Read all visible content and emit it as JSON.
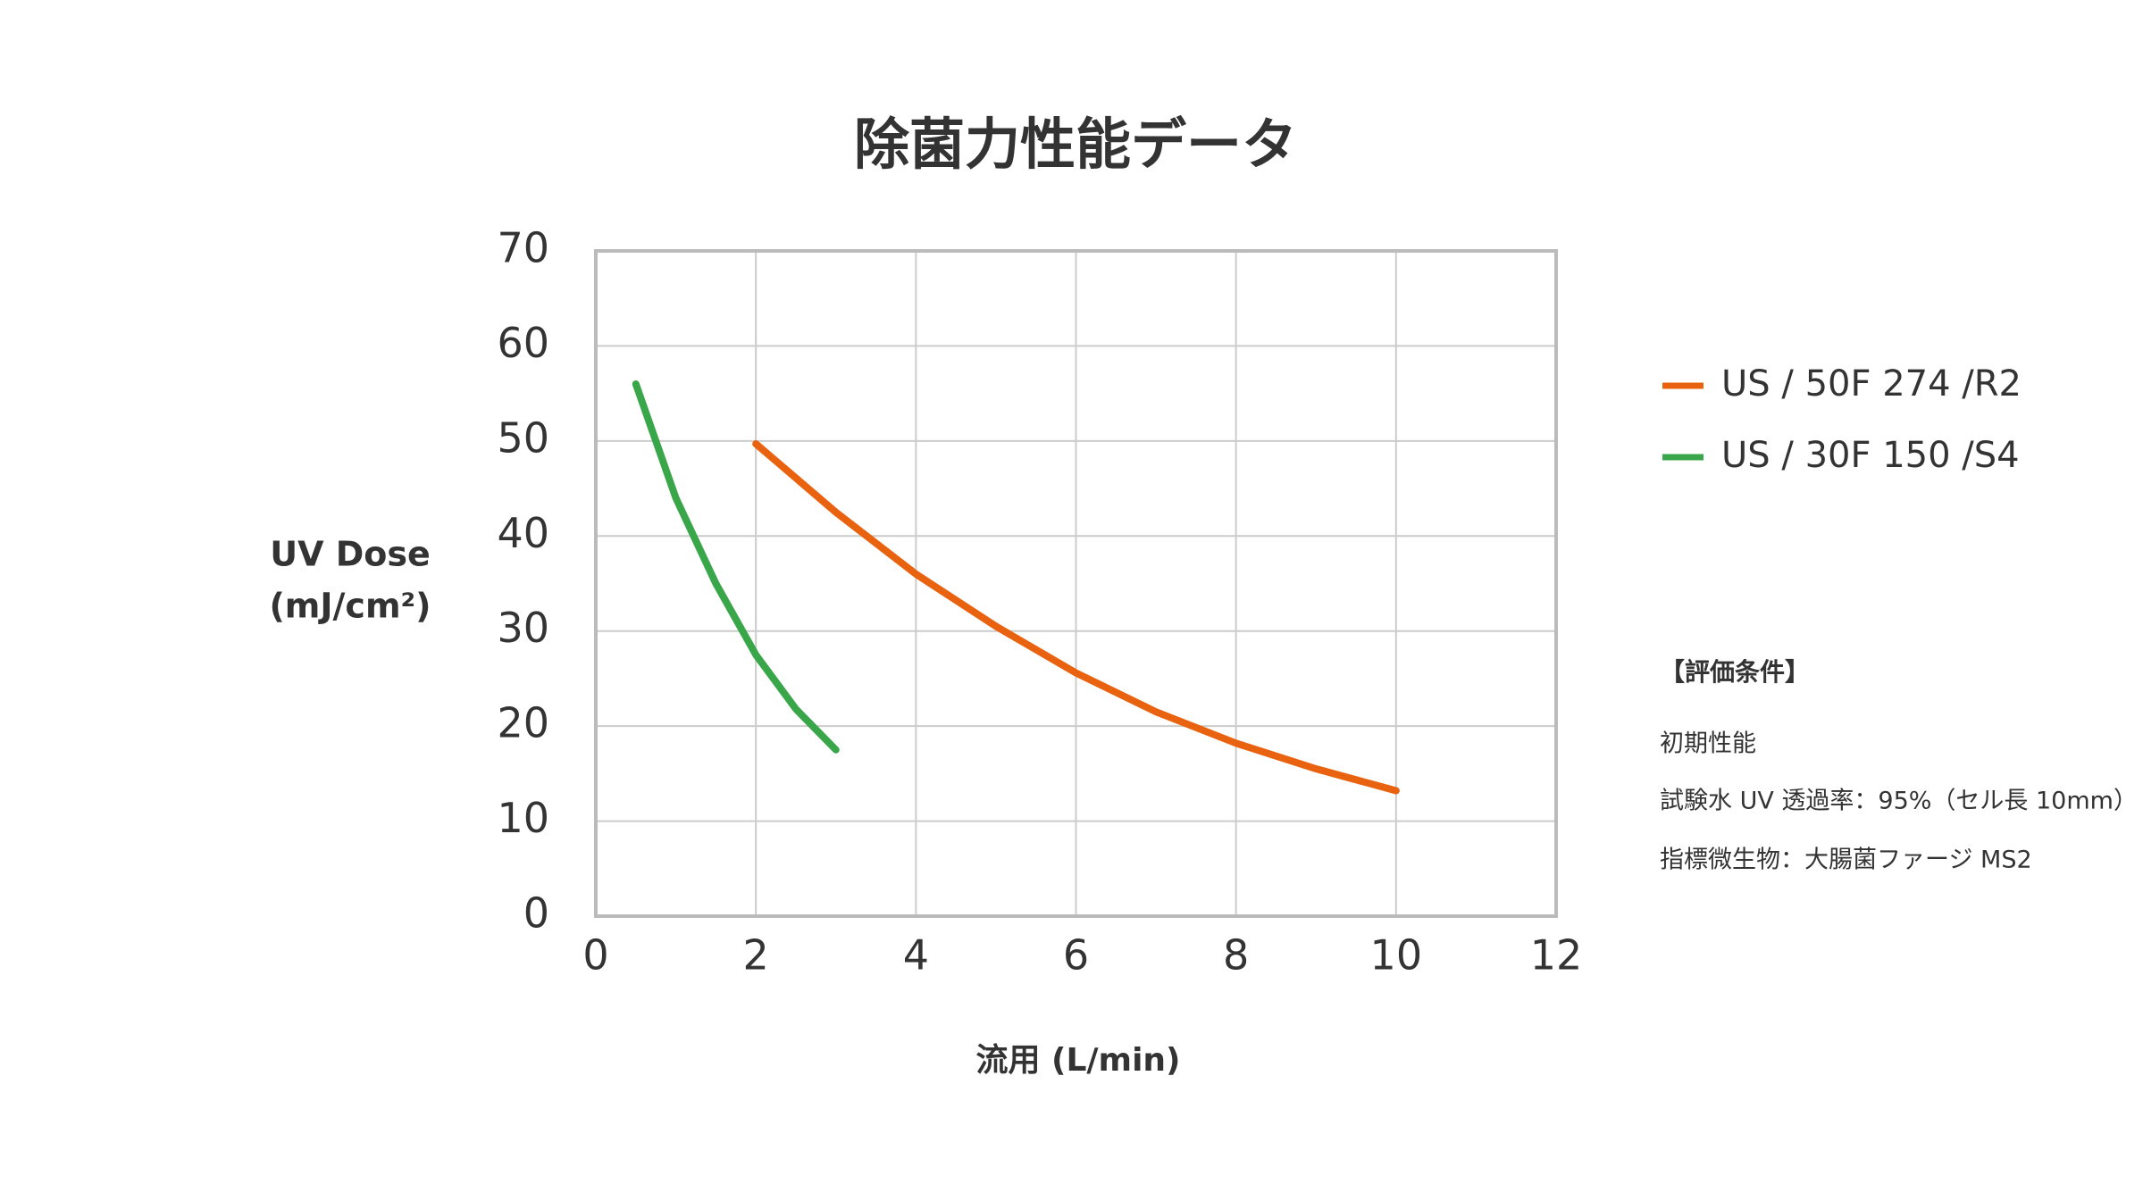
{
  "chart_data": {
    "type": "line",
    "title": "除菌力性能データ",
    "x_label": "流用 (L/min)",
    "y_label": [
      "UV Dose",
      "(mJ/cm²)"
    ],
    "xlim": [
      0,
      12
    ],
    "xticks": [
      0,
      2,
      4,
      6,
      8,
      10,
      12
    ],
    "ylim": [
      0,
      70
    ],
    "yticks": [
      0,
      10,
      20,
      30,
      40,
      50,
      60,
      70
    ],
    "grid": true,
    "series": [
      {
        "name": "US / 50F 274 /R2",
        "color": "#e8620f",
        "x": [
          2,
          3,
          4,
          5,
          6,
          7,
          8,
          9,
          10
        ],
        "values": [
          49.7,
          42.5,
          36,
          30.5,
          25.6,
          21.5,
          18.2,
          15.5,
          13.2
        ]
      },
      {
        "name": "US / 30F 150 /S4",
        "color": "#3aa64a",
        "x": [
          0.5,
          1,
          1.5,
          2,
          2.5,
          3
        ],
        "values": [
          56,
          44,
          35,
          27.5,
          21.8,
          17.5
        ]
      }
    ],
    "conditions": {
      "heading": "【評価条件】",
      "lines": [
        "初期性能",
        "試験水 UV 透過率：95%（セル長 10mm）",
        "指標微生物：大腸菌ファージ MS2"
      ]
    }
  }
}
